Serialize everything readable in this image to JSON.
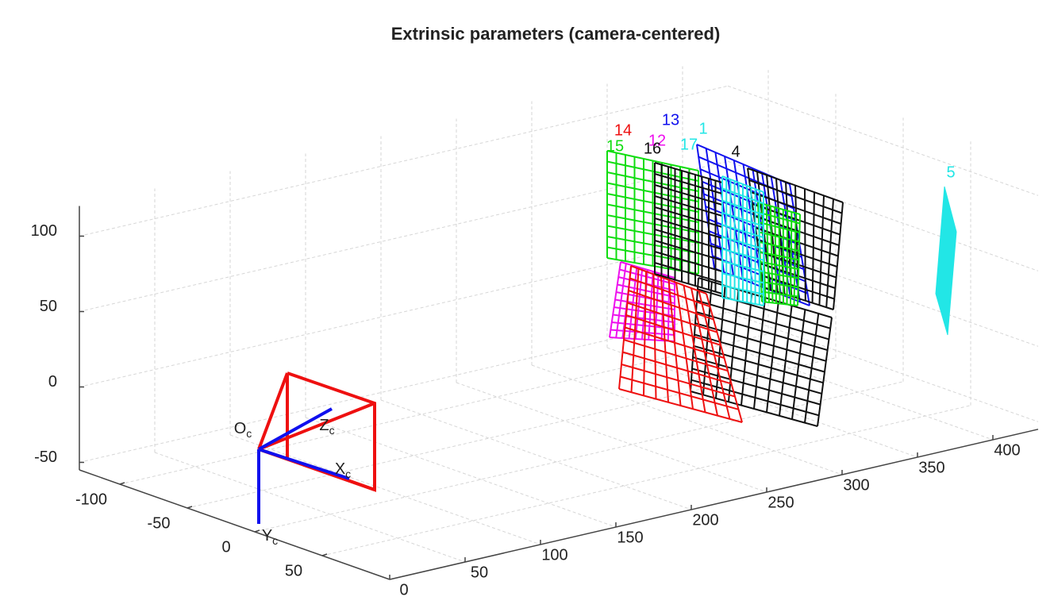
{
  "chart_data": {
    "type": "extrinsic-3d",
    "title": "Extrinsic parameters (camera-centered)",
    "xlim": [
      0,
      430
    ],
    "xticks": [
      0,
      50,
      100,
      150,
      200,
      250,
      300,
      350,
      400
    ],
    "ylim": [
      -130,
      100
    ],
    "yticks": [
      -100,
      -50,
      0,
      50
    ],
    "zlim": [
      -55,
      120
    ],
    "zticks": [
      -50,
      0,
      50,
      100
    ],
    "grid": true,
    "camera": {
      "origin": "O",
      "x": "X",
      "y": "Y",
      "z": "Z",
      "subscript": "c"
    },
    "boards": [
      {
        "label": "13",
        "color": "#1010ee"
      },
      {
        "label": "14",
        "color": "#ee1010"
      },
      {
        "label": "1",
        "color": "#22e6e6"
      },
      {
        "label": "12",
        "color": "#ee10ee"
      },
      {
        "label": "17",
        "color": "#22e6e6"
      },
      {
        "label": "15",
        "color": "#10dd10"
      },
      {
        "label": "16",
        "color": "#111111"
      },
      {
        "label": "4",
        "color": "#111111"
      },
      {
        "label": "5",
        "color": "#22e6e6"
      }
    ]
  }
}
